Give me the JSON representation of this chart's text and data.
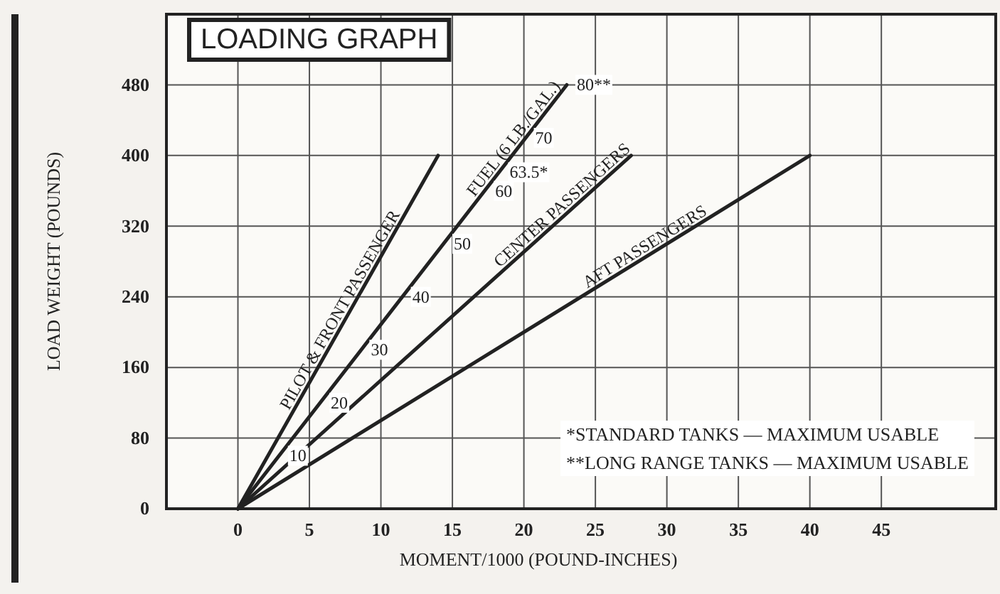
{
  "chart_data": {
    "type": "line",
    "title": "LOADING GRAPH",
    "xlabel": "MOMENT/1000 (POUND-INCHES)",
    "ylabel": "LOAD WEIGHT (POUNDS)",
    "xlim": [
      -5,
      53
    ],
    "ylim": [
      0,
      560
    ],
    "xticks": [
      0,
      5,
      10,
      15,
      20,
      25,
      30,
      35,
      40,
      45
    ],
    "yticks": [
      0,
      80,
      160,
      240,
      320,
      400,
      480
    ],
    "grid": true,
    "series": [
      {
        "name": "PILOT & FRONT PASSENGER",
        "color": "#222222",
        "x": [
          0,
          14
        ],
        "values": [
          0,
          400
        ]
      },
      {
        "name": "FUEL (6 LB./GAL.)",
        "color": "#222222",
        "x": [
          0,
          23
        ],
        "values": [
          0,
          480
        ]
      },
      {
        "name": "CENTER PASSENGERS",
        "color": "#222222",
        "x": [
          0,
          27.5
        ],
        "values": [
          0,
          400
        ]
      },
      {
        "name": "AFT PASSENGERS",
        "color": "#222222",
        "x": [
          0,
          40
        ],
        "values": [
          0,
          400
        ]
      }
    ],
    "annotations": [
      {
        "text": "10",
        "x": 2.9,
        "y": 60
      },
      {
        "text": "20",
        "x": 5.8,
        "y": 120
      },
      {
        "text": "30",
        "x": 8.6,
        "y": 180
      },
      {
        "text": "40",
        "x": 11.5,
        "y": 240
      },
      {
        "text": "50",
        "x": 14.4,
        "y": 300
      },
      {
        "text": "60",
        "x": 17.3,
        "y": 360
      },
      {
        "text": "63.5*",
        "x": 18.3,
        "y": 381
      },
      {
        "text": "70",
        "x": 20.1,
        "y": 420
      },
      {
        "text": "80**",
        "x": 23,
        "y": 480
      },
      "*STANDARD TANKS — MAXIMUM USABLE",
      "**LONG RANGE TANKS — MAXIMUM USABLE"
    ]
  }
}
